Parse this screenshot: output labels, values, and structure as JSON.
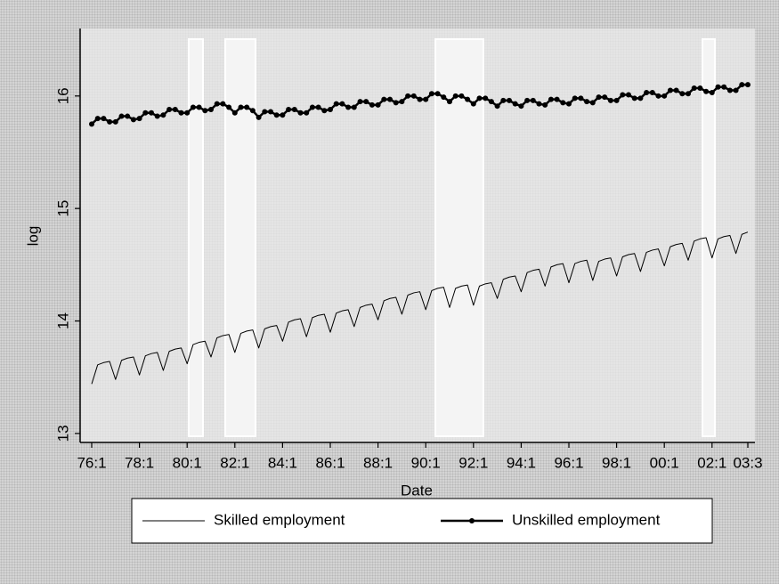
{
  "chart_data": {
    "type": "line",
    "xlabel": "Date",
    "ylabel": "log",
    "categories": [
      "76:1",
      null,
      null,
      null,
      null,
      null,
      null,
      null,
      "78:1",
      null,
      null,
      null,
      null,
      null,
      null,
      null,
      "80:1",
      null,
      null,
      null,
      null,
      null,
      null,
      null,
      "82:1",
      null,
      null,
      null,
      null,
      null,
      null,
      null,
      "84:1",
      null,
      null,
      null,
      null,
      null,
      null,
      null,
      "86:1",
      null,
      null,
      null,
      null,
      null,
      null,
      null,
      "88:1",
      null,
      null,
      null,
      null,
      null,
      null,
      null,
      "90:1",
      null,
      null,
      null,
      null,
      null,
      null,
      null,
      "92:1",
      null,
      null,
      null,
      null,
      null,
      null,
      null,
      "94:1",
      null,
      null,
      null,
      null,
      null,
      null,
      null,
      "96:1",
      null,
      null,
      null,
      null,
      null,
      null,
      null,
      "98:1",
      null,
      null,
      null,
      null,
      null,
      null,
      null,
      "00:1",
      null,
      null,
      null,
      null,
      null,
      null,
      null,
      "02:1",
      null,
      null,
      null,
      null,
      null,
      "03:3"
    ],
    "ylim": [
      12.92,
      16.6
    ],
    "yticks": [
      13,
      14,
      15,
      16
    ],
    "series": [
      {
        "name": "Skilled employment",
        "color": "#000000",
        "line_width": 1,
        "values": [
          13.44,
          13.61,
          13.63,
          13.64,
          13.48,
          13.65,
          13.67,
          13.68,
          13.52,
          13.69,
          13.71,
          13.72,
          13.56,
          13.73,
          13.75,
          13.76,
          13.62,
          13.79,
          13.81,
          13.82,
          13.68,
          13.85,
          13.87,
          13.88,
          13.72,
          13.89,
          13.91,
          13.92,
          13.76,
          13.93,
          13.95,
          13.96,
          13.82,
          13.99,
          14.01,
          14.02,
          13.86,
          14.03,
          14.05,
          14.06,
          13.9,
          14.07,
          14.09,
          14.1,
          13.95,
          14.12,
          14.14,
          14.15,
          14.01,
          14.18,
          14.2,
          14.21,
          14.06,
          14.23,
          14.25,
          14.26,
          14.1,
          14.27,
          14.29,
          14.3,
          14.12,
          14.29,
          14.31,
          14.32,
          14.14,
          14.31,
          14.33,
          14.34,
          14.2,
          14.37,
          14.39,
          14.4,
          14.26,
          14.43,
          14.45,
          14.46,
          14.31,
          14.48,
          14.5,
          14.51,
          14.34,
          14.51,
          14.53,
          14.54,
          14.36,
          14.53,
          14.55,
          14.56,
          14.4,
          14.57,
          14.59,
          14.6,
          14.44,
          14.61,
          14.63,
          14.64,
          14.49,
          14.66,
          14.68,
          14.69,
          14.54,
          14.71,
          14.73,
          14.74,
          14.56,
          14.73,
          14.75,
          14.76,
          14.6,
          14.77,
          14.79
        ]
      },
      {
        "name": "Unskilled employment",
        "color": "#000000",
        "line_width": 2.5,
        "marker": "circle",
        "values": [
          15.75,
          15.8,
          15.8,
          15.77,
          15.77,
          15.82,
          15.82,
          15.79,
          15.8,
          15.85,
          15.85,
          15.82,
          15.83,
          15.88,
          15.88,
          15.85,
          15.85,
          15.9,
          15.9,
          15.87,
          15.88,
          15.93,
          15.93,
          15.9,
          15.85,
          15.9,
          15.9,
          15.87,
          15.81,
          15.86,
          15.86,
          15.83,
          15.83,
          15.88,
          15.88,
          15.85,
          15.85,
          15.9,
          15.9,
          15.87,
          15.88,
          15.93,
          15.93,
          15.9,
          15.9,
          15.95,
          15.95,
          15.92,
          15.92,
          15.97,
          15.97,
          15.94,
          15.95,
          16.0,
          16.0,
          15.97,
          15.97,
          16.02,
          16.02,
          15.99,
          15.95,
          16.0,
          16.0,
          15.97,
          15.93,
          15.98,
          15.98,
          15.95,
          15.91,
          15.96,
          15.96,
          15.93,
          15.91,
          15.96,
          15.96,
          15.93,
          15.92,
          15.97,
          15.97,
          15.94,
          15.93,
          15.98,
          15.98,
          15.95,
          15.94,
          15.99,
          15.99,
          15.96,
          15.96,
          16.01,
          16.01,
          15.98,
          15.98,
          16.03,
          16.03,
          16.0,
          16.0,
          16.05,
          16.05,
          16.02,
          16.02,
          16.07,
          16.07,
          16.04,
          16.03,
          16.08,
          16.08,
          16.05,
          16.05,
          16.1,
          16.1
        ]
      }
    ]
  }
}
